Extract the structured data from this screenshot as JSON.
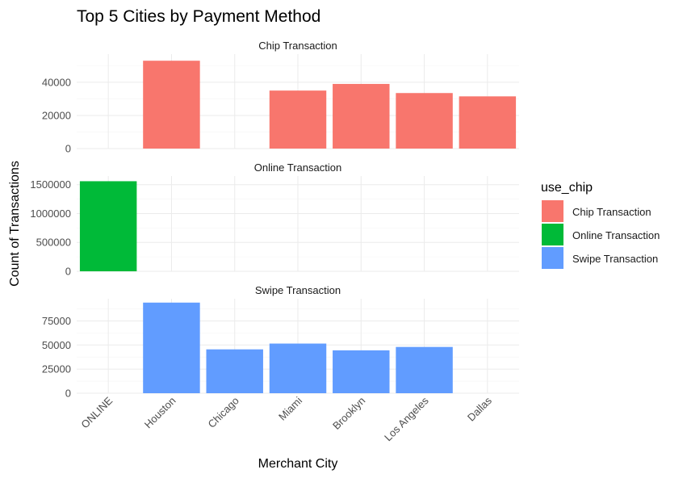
{
  "chart_data": {
    "type": "bar",
    "title": "Top 5 Cities by Payment Method",
    "xlabel": "Merchant City",
    "ylabel": "Count of Transactions",
    "categories": [
      "ONLINE",
      "Houston",
      "Chicago",
      "Miami",
      "Brooklyn",
      "Los Angeles",
      "Dallas"
    ],
    "legend": {
      "title": "use_chip",
      "position": "right",
      "entries": [
        {
          "label": "Chip Transaction",
          "color": "#F8766D"
        },
        {
          "label": "Online Transaction",
          "color": "#00BA38"
        },
        {
          "label": "Swipe Transaction",
          "color": "#619CFF"
        }
      ]
    },
    "grid": true,
    "facets": [
      {
        "name": "Chip Transaction",
        "color": "#F8766D",
        "values": [
          null,
          53000,
          null,
          35000,
          39000,
          33500,
          31500
        ],
        "ylim": [
          0,
          57000
        ],
        "yticks": [
          0,
          20000,
          40000
        ],
        "yticklabels": [
          "0",
          "20000",
          "40000"
        ]
      },
      {
        "name": "Online Transaction",
        "color": "#00BA38",
        "values": [
          1560000,
          null,
          null,
          null,
          null,
          null,
          null
        ],
        "ylim": [
          0,
          1650000
        ],
        "yticks": [
          0,
          500000,
          1000000,
          1500000
        ],
        "yticklabels": [
          "0",
          "500000",
          "1000000",
          "1500000"
        ]
      },
      {
        "name": "Swipe Transaction",
        "color": "#619CFF",
        "values": [
          null,
          94000,
          45500,
          51500,
          44500,
          48000,
          null
        ],
        "ylim": [
          0,
          98000
        ],
        "yticks": [
          0,
          25000,
          50000,
          75000
        ],
        "yticklabels": [
          "0",
          "25000",
          "50000",
          "75000"
        ]
      }
    ]
  }
}
